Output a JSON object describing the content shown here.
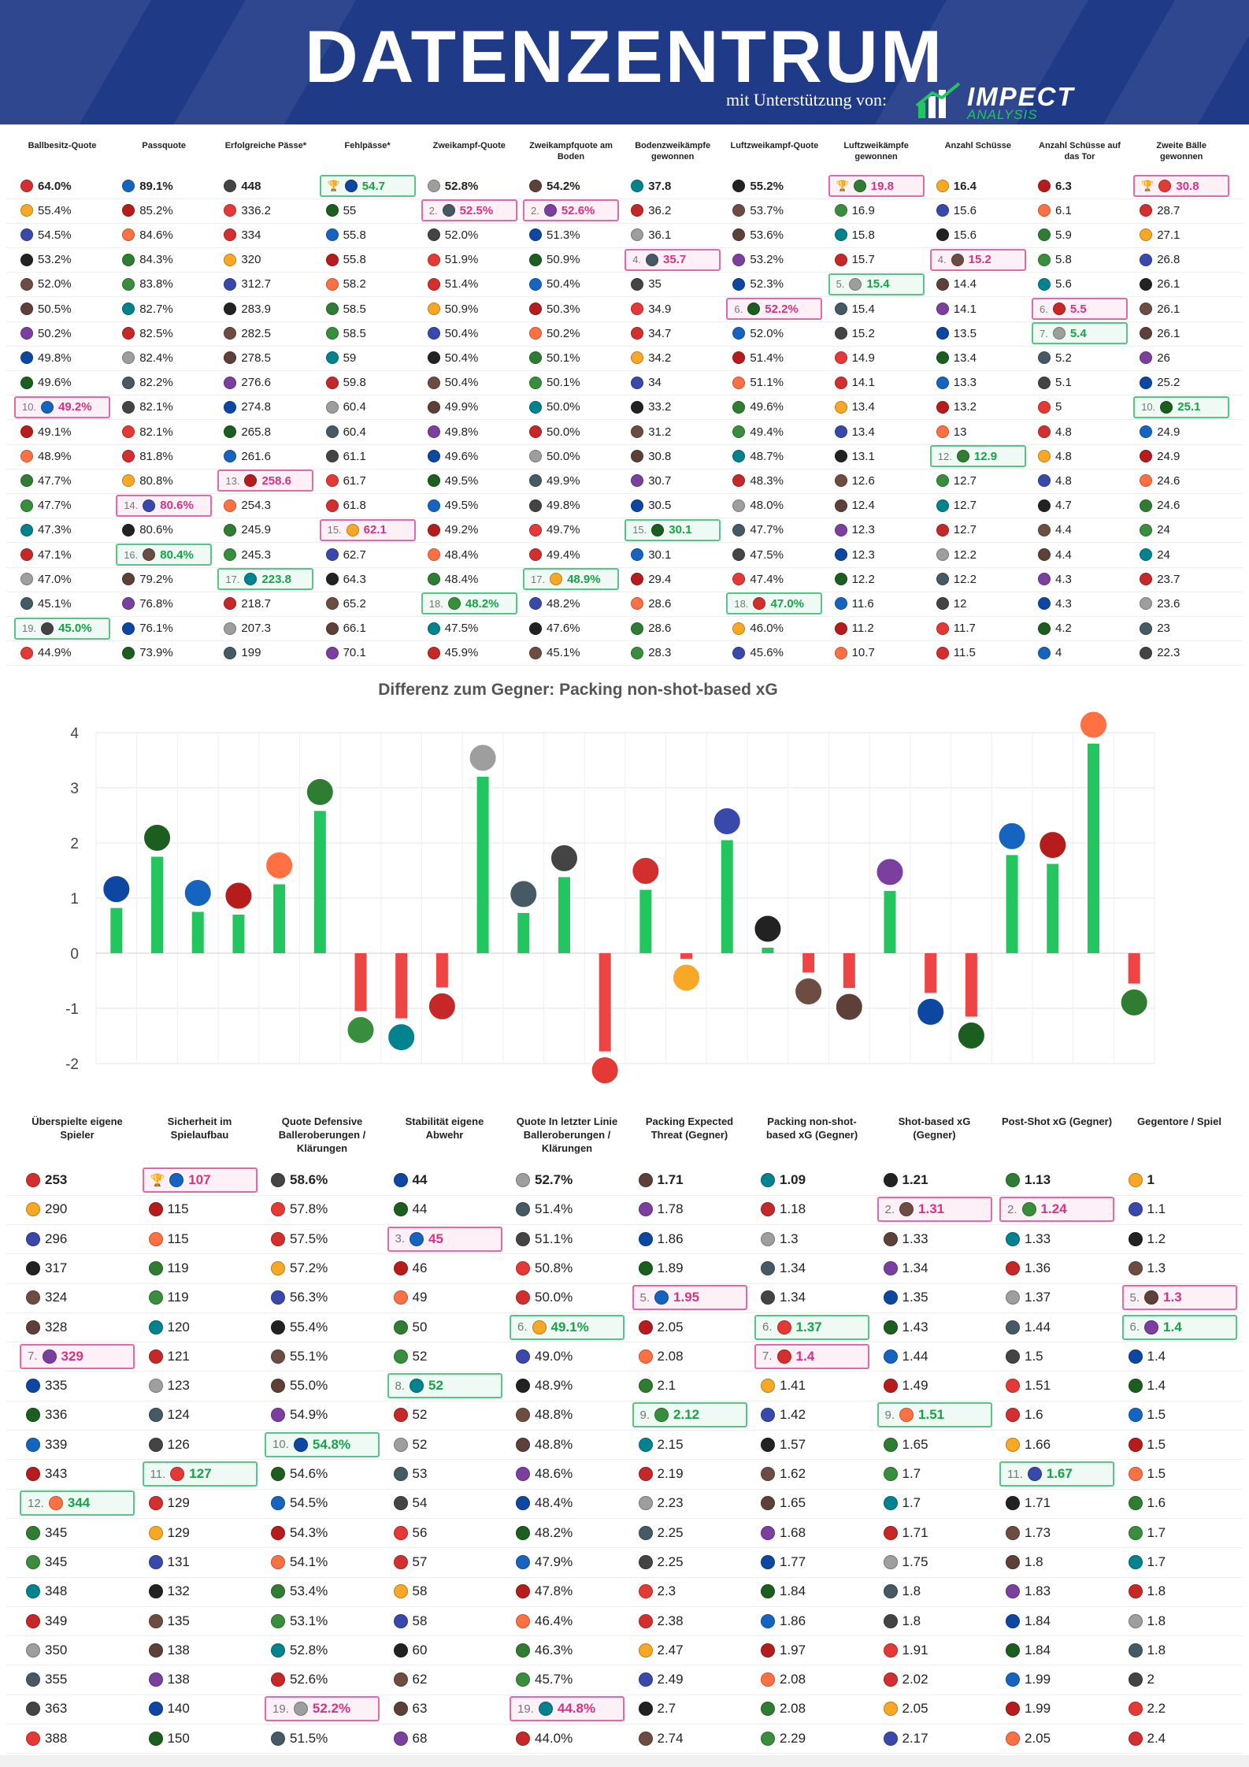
{
  "header": {
    "title": "DATENZENTRUM",
    "support": "mit Unterstützung von:",
    "logo_text": "IMPECT",
    "logo_sub": "ANALYSIS",
    "colors": {
      "band": "#1f3a86",
      "accent": "#22c55e"
    }
  },
  "top_table": {
    "columns": [
      {
        "header": "Ballbesitz-Quote",
        "cells": [
          "64.0%",
          "55.4%",
          "54.5%",
          "53.2%",
          "52.0%",
          "50.5%",
          "50.2%",
          "49.8%",
          "49.6%",
          "49.2%",
          "49.1%",
          "48.9%",
          "47.7%",
          "47.7%",
          "47.3%",
          "47.1%",
          "47.0%",
          "45.1%",
          "45.0%",
          "44.9%"
        ],
        "hl": {
          "9": [
            "pink",
            "10."
          ],
          "18": [
            "green",
            "19."
          ]
        }
      },
      {
        "header": "Passquote",
        "cells": [
          "89.1%",
          "85.2%",
          "84.6%",
          "84.3%",
          "83.8%",
          "82.7%",
          "82.5%",
          "82.4%",
          "82.2%",
          "82.1%",
          "82.1%",
          "81.8%",
          "80.8%",
          "80.6%",
          "80.6%",
          "80.4%",
          "79.2%",
          "76.8%",
          "76.1%",
          "73.9%"
        ],
        "hl": {
          "13": [
            "pink",
            "14."
          ],
          "15": [
            "green",
            "16."
          ]
        }
      },
      {
        "header": "Erfolgreiche Pässe*",
        "cells": [
          "448",
          "336.2",
          "334",
          "320",
          "312.7",
          "283.9",
          "282.5",
          "278.5",
          "276.6",
          "274.8",
          "265.8",
          "261.6",
          "258.6",
          "254.3",
          "245.9",
          "245.3",
          "223.8",
          "218.7",
          "207.3",
          "199"
        ],
        "hl": {
          "12": [
            "pink",
            "13."
          ],
          "16": [
            "green",
            "17."
          ]
        }
      },
      {
        "header": "Fehlpässe*",
        "cells": [
          "54.7",
          "55",
          "55.8",
          "55.8",
          "58.2",
          "58.5",
          "58.5",
          "59",
          "59.8",
          "60.4",
          "60.4",
          "61.1",
          "61.7",
          "61.8",
          "62.1",
          "62.7",
          "64.3",
          "65.2",
          "66.1",
          "70.1"
        ],
        "hl": {
          "0": [
            "green",
            "🏆"
          ],
          "14": [
            "pink",
            "15."
          ]
        }
      },
      {
        "header": "Zweikampf-Quote",
        "cells": [
          "52.8%",
          "52.5%",
          "52.0%",
          "51.9%",
          "51.4%",
          "50.9%",
          "50.4%",
          "50.4%",
          "50.4%",
          "49.9%",
          "49.8%",
          "49.6%",
          "49.5%",
          "49.5%",
          "49.2%",
          "48.4%",
          "48.4%",
          "48.2%",
          "47.5%",
          "45.9%"
        ],
        "hl": {
          "1": [
            "pink",
            "2."
          ],
          "17": [
            "green",
            "18."
          ]
        }
      },
      {
        "header": "Zweikampfquote am Boden",
        "cells": [
          "54.2%",
          "52.6%",
          "51.3%",
          "50.9%",
          "50.4%",
          "50.3%",
          "50.2%",
          "50.1%",
          "50.1%",
          "50.0%",
          "50.0%",
          "50.0%",
          "49.9%",
          "49.8%",
          "49.7%",
          "49.4%",
          "48.9%",
          "48.2%",
          "47.6%",
          "45.1%"
        ],
        "hl": {
          "1": [
            "pink",
            "2."
          ],
          "16": [
            "green",
            "17."
          ]
        }
      },
      {
        "header": "Bodenzweikämpfe gewonnen",
        "cells": [
          "37.8",
          "36.2",
          "36.1",
          "35.7",
          "35",
          "34.9",
          "34.7",
          "34.2",
          "34",
          "33.2",
          "31.2",
          "30.8",
          "30.7",
          "30.5",
          "30.1",
          "30.1",
          "29.4",
          "28.6",
          "28.6",
          "28.3"
        ],
        "hl": {
          "3": [
            "pink",
            "4."
          ],
          "14": [
            "green",
            "15."
          ]
        }
      },
      {
        "header": "Luftzweikampf-Quote",
        "cells": [
          "55.2%",
          "53.7%",
          "53.6%",
          "53.2%",
          "52.3%",
          "52.2%",
          "52.0%",
          "51.4%",
          "51.1%",
          "49.6%",
          "49.4%",
          "48.7%",
          "48.3%",
          "48.0%",
          "47.7%",
          "47.5%",
          "47.4%",
          "47.0%",
          "46.0%",
          "45.6%"
        ],
        "hl": {
          "5": [
            "pink",
            "6."
          ],
          "17": [
            "green",
            "18."
          ]
        }
      },
      {
        "header": "Luftzweikämpfe gewonnen",
        "cells": [
          "19.8",
          "16.9",
          "15.8",
          "15.7",
          "15.4",
          "15.4",
          "15.2",
          "14.9",
          "14.1",
          "13.4",
          "13.4",
          "13.1",
          "12.6",
          "12.4",
          "12.3",
          "12.3",
          "12.2",
          "11.6",
          "11.2",
          "10.7"
        ],
        "hl": {
          "0": [
            "pink",
            "🏆"
          ],
          "4": [
            "green",
            "5."
          ]
        }
      },
      {
        "header": "Anzahl Schüsse",
        "cells": [
          "16.4",
          "15.6",
          "15.6",
          "15.2",
          "14.4",
          "14.1",
          "13.5",
          "13.4",
          "13.3",
          "13.2",
          "13",
          "12.9",
          "12.7",
          "12.7",
          "12.7",
          "12.2",
          "12.2",
          "12",
          "11.7",
          "11.5"
        ],
        "hl": {
          "3": [
            "pink",
            "4."
          ],
          "11": [
            "green",
            "12."
          ]
        }
      },
      {
        "header": "Anzahl Schüsse auf das Tor",
        "cells": [
          "6.3",
          "6.1",
          "5.9",
          "5.8",
          "5.6",
          "5.5",
          "5.4",
          "5.2",
          "5.1",
          "5",
          "4.8",
          "4.8",
          "4.8",
          "4.7",
          "4.4",
          "4.4",
          "4.3",
          "4.3",
          "4.2",
          "4"
        ],
        "hl": {
          "5": [
            "pink",
            "6."
          ],
          "6": [
            "green",
            "7."
          ]
        }
      },
      {
        "header": "Zweite Bälle gewonnen",
        "cells": [
          "30.8",
          "28.7",
          "27.1",
          "26.8",
          "26.1",
          "26.1",
          "26.1",
          "26",
          "25.2",
          "25.1",
          "24.9",
          "24.9",
          "24.6",
          "24.6",
          "24",
          "24",
          "23.7",
          "23.6",
          "23",
          "22.3"
        ],
        "hl": {
          "0": [
            "pink",
            "🏆"
          ],
          "9": [
            "green",
            "10."
          ]
        }
      }
    ]
  },
  "chart_data": {
    "type": "bar",
    "title": "Differenz zum Gegner: Packing non-shot-based xG",
    "xlabel": "",
    "ylabel": "",
    "ylim": [
      -2,
      4
    ],
    "yticks": [
      4,
      3,
      2,
      1,
      0,
      -1,
      -2
    ],
    "grid": true,
    "values": [
      0.82,
      1.75,
      0.75,
      0.7,
      1.25,
      2.58,
      -1.05,
      -1.18,
      -0.62,
      3.2,
      0.73,
      1.38,
      -1.78,
      1.15,
      -0.1,
      2.05,
      0.1,
      -0.35,
      -0.63,
      1.13,
      -0.72,
      -1.15,
      1.78,
      1.62,
      3.8,
      -0.55
    ],
    "colors": {
      "positive": "#22c55e",
      "negative": "#ef4444"
    }
  },
  "bottom_table": {
    "columns": [
      {
        "header": "Überspielte eigene Spieler",
        "cells": [
          "253",
          "290",
          "296",
          "317",
          "324",
          "328",
          "329",
          "335",
          "336",
          "339",
          "343",
          "344",
          "345",
          "345",
          "348",
          "349",
          "350",
          "355",
          "363",
          "388"
        ],
        "hl": {
          "6": [
            "pink",
            "7."
          ],
          "11": [
            "green",
            "12."
          ]
        }
      },
      {
        "header": "Sicherheit im Spielaufbau",
        "cells": [
          "107",
          "115",
          "115",
          "119",
          "119",
          "120",
          "121",
          "123",
          "124",
          "126",
          "127",
          "129",
          "129",
          "131",
          "132",
          "135",
          "138",
          "138",
          "140",
          "150"
        ],
        "hl": {
          "0": [
            "pink",
            "🏆"
          ],
          "10": [
            "green",
            "11."
          ]
        }
      },
      {
        "header": "Quote Defensive Balleroberungen / Klärungen",
        "cells": [
          "58.6%",
          "57.8%",
          "57.5%",
          "57.2%",
          "56.3%",
          "55.4%",
          "55.1%",
          "55.0%",
          "54.9%",
          "54.8%",
          "54.6%",
          "54.5%",
          "54.3%",
          "54.1%",
          "53.4%",
          "53.1%",
          "52.8%",
          "52.6%",
          "52.2%",
          "51.5%"
        ],
        "hl": {
          "9": [
            "green",
            "10."
          ],
          "18": [
            "pink",
            "19."
          ]
        }
      },
      {
        "header": "Stabilität eigene Abwehr",
        "cells": [
          "44",
          "44",
          "45",
          "46",
          "49",
          "50",
          "52",
          "52",
          "52",
          "52",
          "53",
          "54",
          "56",
          "57",
          "58",
          "58",
          "60",
          "62",
          "63",
          "68"
        ],
        "hl": {
          "2": [
            "pink",
            "3."
          ],
          "7": [
            "green",
            "8."
          ]
        }
      },
      {
        "header": "Quote In letzter Linie Balleroberungen / Klärungen",
        "cells": [
          "52.7%",
          "51.4%",
          "51.1%",
          "50.8%",
          "50.0%",
          "49.1%",
          "49.0%",
          "48.9%",
          "48.8%",
          "48.8%",
          "48.6%",
          "48.4%",
          "48.2%",
          "47.9%",
          "47.8%",
          "46.4%",
          "46.3%",
          "45.7%",
          "44.8%",
          "44.0%"
        ],
        "hl": {
          "5": [
            "green",
            "6."
          ],
          "18": [
            "pink",
            "19."
          ]
        }
      },
      {
        "header": "Packing Expected Threat (Gegner)",
        "cells": [
          "1.71",
          "1.78",
          "1.86",
          "1.89",
          "1.95",
          "2.05",
          "2.08",
          "2.1",
          "2.12",
          "2.15",
          "2.19",
          "2.23",
          "2.25",
          "2.25",
          "2.3",
          "2.38",
          "2.47",
          "2.49",
          "2.7",
          "2.74"
        ],
        "hl": {
          "4": [
            "pink",
            "5."
          ],
          "8": [
            "green",
            "9."
          ]
        }
      },
      {
        "header": "Packing non-shot-based xG (Gegner)",
        "cells": [
          "1.09",
          "1.18",
          "1.3",
          "1.34",
          "1.34",
          "1.37",
          "1.4",
          "1.41",
          "1.42",
          "1.57",
          "1.62",
          "1.65",
          "1.68",
          "1.77",
          "1.84",
          "1.86",
          "1.97",
          "2.08",
          "2.08",
          "2.29"
        ],
        "hl": {
          "5": [
            "green",
            "6."
          ],
          "6": [
            "pink",
            "7."
          ]
        }
      },
      {
        "header": "Shot-based xG (Gegner)",
        "cells": [
          "1.21",
          "1.31",
          "1.33",
          "1.34",
          "1.35",
          "1.43",
          "1.44",
          "1.49",
          "1.51",
          "1.65",
          "1.7",
          "1.7",
          "1.71",
          "1.75",
          "1.8",
          "1.8",
          "1.91",
          "2.02",
          "2.05",
          "2.17"
        ],
        "hl": {
          "1": [
            "pink",
            "2."
          ],
          "8": [
            "green",
            "9."
          ]
        }
      },
      {
        "header": "Post-Shot xG (Gegner)",
        "cells": [
          "1.13",
          "1.24",
          "1.33",
          "1.36",
          "1.37",
          "1.44",
          "1.5",
          "1.51",
          "1.6",
          "1.66",
          "1.67",
          "1.71",
          "1.73",
          "1.8",
          "1.83",
          "1.84",
          "1.84",
          "1.99",
          "1.99",
          "2.05"
        ],
        "hl": {
          "1": [
            "pink",
            "2."
          ],
          "10": [
            "green",
            "11."
          ]
        }
      },
      {
        "header": "Gegentore / Spiel",
        "cells": [
          "1",
          "1.1",
          "1.2",
          "1.3",
          "1.3",
          "1.4",
          "1.4",
          "1.4",
          "1.5",
          "1.5",
          "1.5",
          "1.6",
          "1.7",
          "1.7",
          "1.8",
          "1.8",
          "1.8",
          "2",
          "2.2",
          "2.4"
        ],
        "hl": {
          "4": [
            "pink",
            "5."
          ],
          "5": [
            "green",
            "6."
          ]
        }
      }
    ]
  }
}
